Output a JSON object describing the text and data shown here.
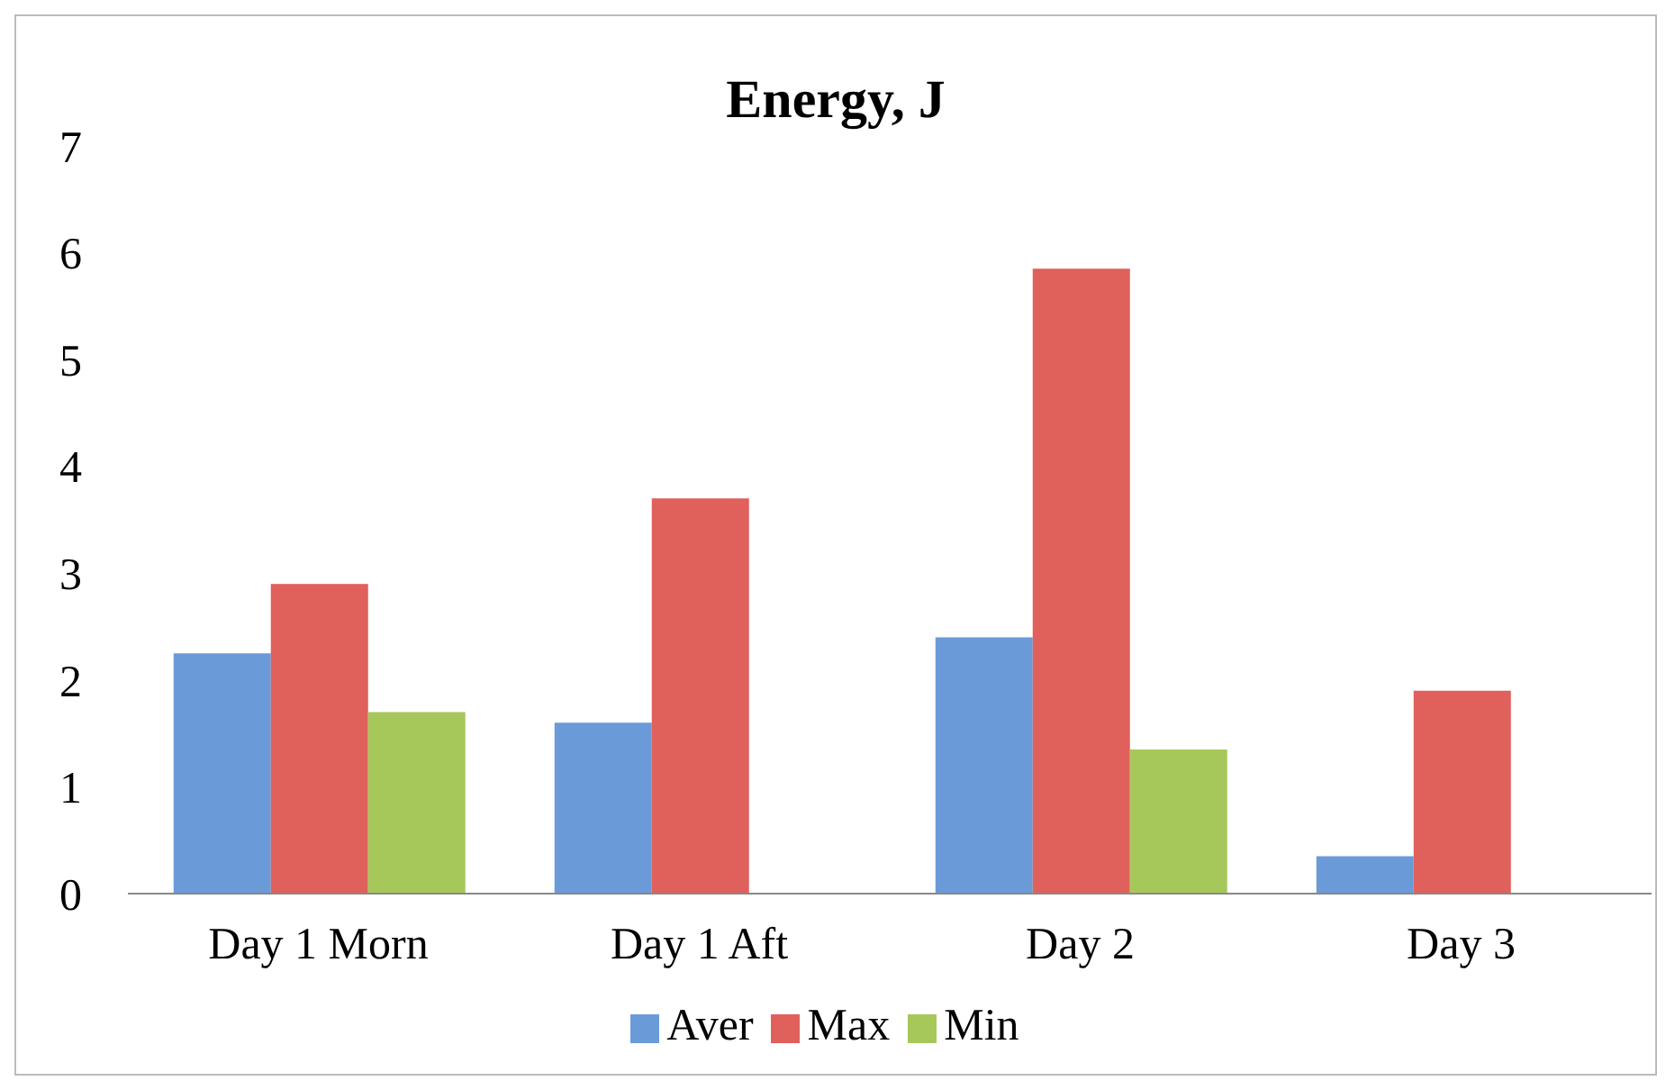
{
  "chart_data": {
    "type": "bar",
    "title": "Energy, J",
    "categories": [
      "Day 1 Morn",
      "Day 1 Aft",
      "Day 2",
      "Day 3"
    ],
    "series": [
      {
        "name": "Aver",
        "color": "#6a9bd8",
        "values": [
          2.25,
          1.6,
          2.4,
          0.35
        ]
      },
      {
        "name": "Max",
        "color": "#e0605c",
        "values": [
          2.9,
          3.7,
          5.85,
          1.9
        ]
      },
      {
        "name": "Min",
        "color": "#a6c85a",
        "values": [
          1.7,
          null,
          1.35,
          null
        ]
      }
    ],
    "ylim": [
      0,
      7
    ],
    "yticks": [
      0,
      1,
      2,
      3,
      4,
      5,
      6,
      7
    ],
    "grid": false,
    "legend": "bottom"
  }
}
